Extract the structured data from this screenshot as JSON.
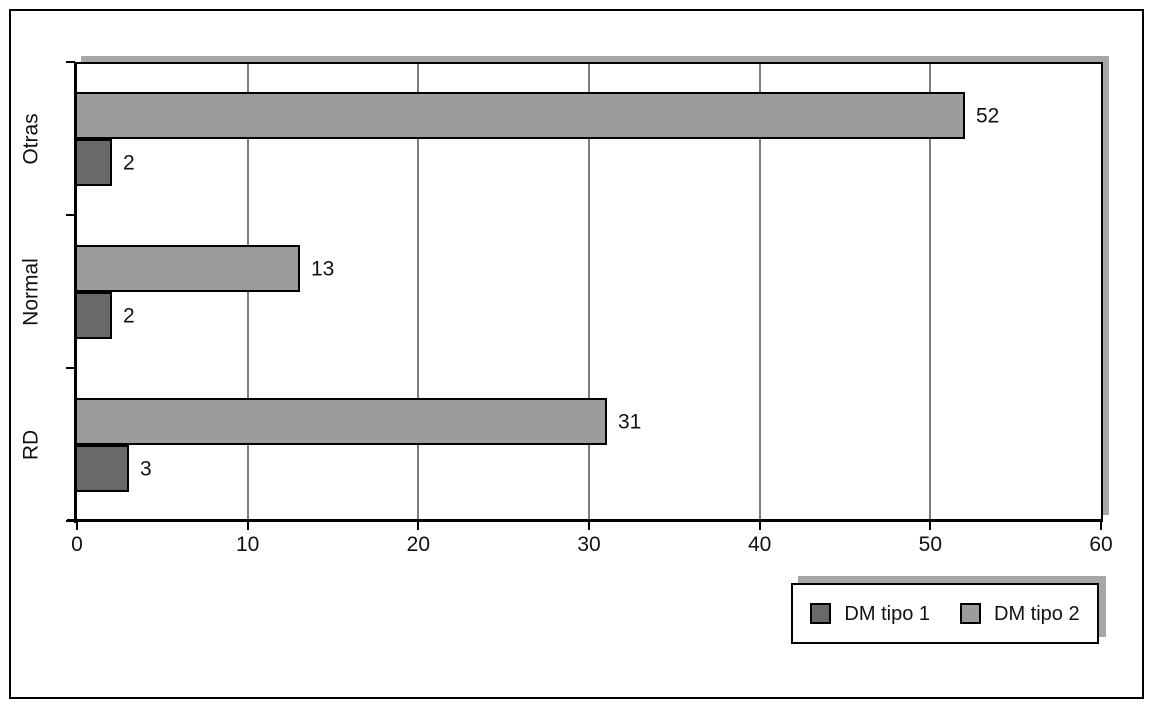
{
  "chart_data": {
    "type": "bar",
    "orientation": "horizontal",
    "title": "",
    "xlabel": "",
    "ylabel": "",
    "categories": [
      "Otras",
      "Normal",
      "RD"
    ],
    "series": [
      {
        "name": "DM tipo 1",
        "color": "#696969",
        "values": [
          2,
          2,
          3
        ]
      },
      {
        "name": "DM tipo 2",
        "color": "#9c9c9c",
        "values": [
          52,
          13,
          31
        ]
      }
    ],
    "value_labels": {
      "DM tipo 1": [
        "2",
        "2",
        "3"
      ],
      "DM tipo 2": [
        "52",
        "13",
        "31"
      ]
    },
    "xlim": [
      0,
      60
    ],
    "xticks": [
      "0",
      "10",
      "20",
      "30",
      "40",
      "50",
      "60"
    ],
    "grid": true,
    "gridline_values": [
      10,
      20,
      30,
      40,
      50
    ],
    "legend_position": "bottom-right",
    "legend_items": [
      {
        "label": "DM tipo 1",
        "color": "#696969"
      },
      {
        "label": "DM tipo 2",
        "color": "#9c9c9c"
      }
    ]
  },
  "colors": {
    "bar_dark": "#696969",
    "bar_light": "#9c9c9c",
    "bar_border": "#000000",
    "gridline": "#7d7d7d",
    "axis": "#000000",
    "shadow": "#a6a6a6",
    "background": "#ffffff",
    "frame_border": "#000000"
  }
}
